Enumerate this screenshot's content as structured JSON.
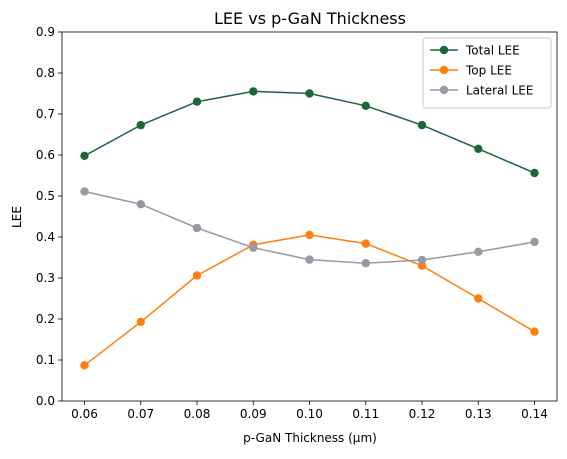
{
  "chart_data": {
    "type": "line",
    "title": "LEE vs p-GaN Thickness",
    "xlabel": "p-GaN Thickness (μm)",
    "ylabel": "LEE",
    "x": [
      0.06,
      0.07,
      0.08,
      0.09,
      0.1,
      0.11,
      0.12,
      0.13,
      0.14
    ],
    "x_tick_labels": [
      "0.06",
      "0.07",
      "0.08",
      "0.09",
      "0.10",
      "0.11",
      "0.12",
      "0.13",
      "0.14"
    ],
    "y_ticks": [
      0.0,
      0.1,
      0.2,
      0.3,
      0.4,
      0.5,
      0.6,
      0.7,
      0.8,
      0.9
    ],
    "y_tick_labels": [
      "0.0",
      "0.1",
      "0.2",
      "0.3",
      "0.4",
      "0.5",
      "0.6",
      "0.7",
      "0.8",
      "0.9"
    ],
    "xlim": [
      0.056,
      0.144
    ],
    "ylim": [
      0.0,
      0.9
    ],
    "grid": false,
    "legend_position": "top-right",
    "series": [
      {
        "name": "Total LEE",
        "color": "#1b6637",
        "marker": "circle",
        "values": [
          0.598,
          0.673,
          0.73,
          0.755,
          0.75,
          0.72,
          0.673,
          0.615,
          0.556
        ]
      },
      {
        "name": "Top LEE",
        "color": "#ff7f0e",
        "marker": "circle",
        "values": [
          0.087,
          0.193,
          0.306,
          0.381,
          0.405,
          0.384,
          0.33,
          0.25,
          0.169
        ]
      },
      {
        "name": "Lateral LEE",
        "color": "#9a98a4",
        "marker": "circle",
        "values": [
          0.511,
          0.48,
          0.422,
          0.374,
          0.345,
          0.336,
          0.344,
          0.364,
          0.388
        ]
      }
    ]
  }
}
